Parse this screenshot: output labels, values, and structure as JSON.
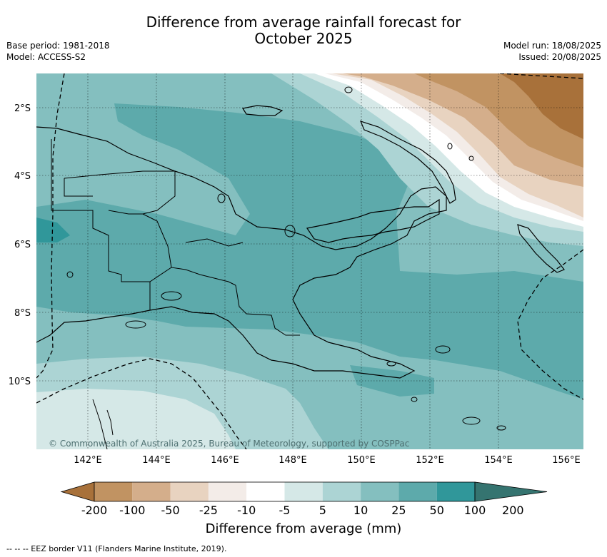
{
  "title_line1": "Difference from average rainfall forecast for",
  "title_line2": "October 2025",
  "meta_left": [
    "Base period: 1981-2018",
    "Model: ACCESS-S2"
  ],
  "meta_right": [
    "Model run: 18/08/2025",
    "Issued: 20/08/2025"
  ],
  "lat_labels": [
    "2°S",
    "4°S",
    "6°S",
    "8°S",
    "10°S"
  ],
  "lon_labels": [
    "142°E",
    "144°E",
    "146°E",
    "148°E",
    "150°E",
    "152°E",
    "154°E",
    "156°E"
  ],
  "copyright": "© Commonwealth of Australia 2025, Bureau of Meteorology, supported by COSPPac",
  "colorbar": {
    "title": "Difference from average (mm)",
    "tick_labels": [
      "-200",
      "-100",
      "-50",
      "-25",
      "-10",
      "-5",
      "5",
      "10",
      "25",
      "50",
      "100",
      "200"
    ],
    "colors": [
      "#a8713a",
      "#c19362",
      "#d4ae8b",
      "#e8d3c0",
      "#f3ece8",
      "#ffffff",
      "#d5e8e7",
      "#acd4d4",
      "#84bfbf",
      "#5daaab",
      "#30979a",
      "#357470"
    ]
  },
  "footnote": "--  --  -- EEZ border V11 (Flanders Marine Institute, 2019)."
}
